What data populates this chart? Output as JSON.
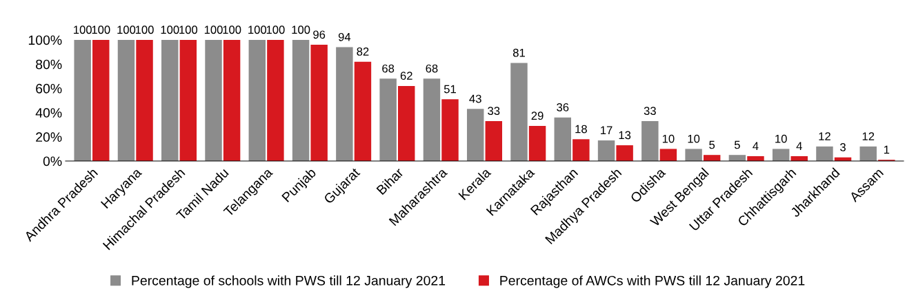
{
  "chart_data": {
    "type": "bar",
    "categories": [
      "Andhra Pradesh",
      "Haryana",
      "Himachal Pradesh",
      "Tamil Nadu",
      "Telangana",
      "Punjab",
      "Gujarat",
      "Bihar",
      "Maharashtra",
      "Kerala",
      "Karnataka",
      "Rajasthan",
      "Madhya Pradesh",
      "Odisha",
      "West Bengal",
      "Uttar Pradesh",
      "Chhattisgarh",
      "Jharkhand",
      "Assam"
    ],
    "series": [
      {
        "name": "Percentage of schools with PWS till 12 January 2021",
        "color": "#8c8c8c",
        "values": [
          100,
          100,
          100,
          100,
          100,
          100,
          94,
          68,
          68,
          43,
          81,
          36,
          17,
          33,
          10,
          5,
          10,
          12,
          12
        ]
      },
      {
        "name": "Percentage of AWCs with PWS till 12 January 2021",
        "color": "#d7191f",
        "values": [
          100,
          100,
          100,
          100,
          100,
          96,
          82,
          62,
          51,
          33,
          29,
          18,
          13,
          10,
          5,
          4,
          4,
          3,
          1
        ]
      }
    ],
    "ylim": [
      0,
      100
    ],
    "yticks": [
      {
        "value": 0,
        "label": "0%"
      },
      {
        "value": 20,
        "label": "20%"
      },
      {
        "value": 40,
        "label": "40%"
      },
      {
        "value": 60,
        "label": "60%"
      },
      {
        "value": 80,
        "label": "80%"
      },
      {
        "value": 100,
        "label": "100%"
      }
    ],
    "data_labels": true,
    "grid": false,
    "legend": "bottom"
  }
}
